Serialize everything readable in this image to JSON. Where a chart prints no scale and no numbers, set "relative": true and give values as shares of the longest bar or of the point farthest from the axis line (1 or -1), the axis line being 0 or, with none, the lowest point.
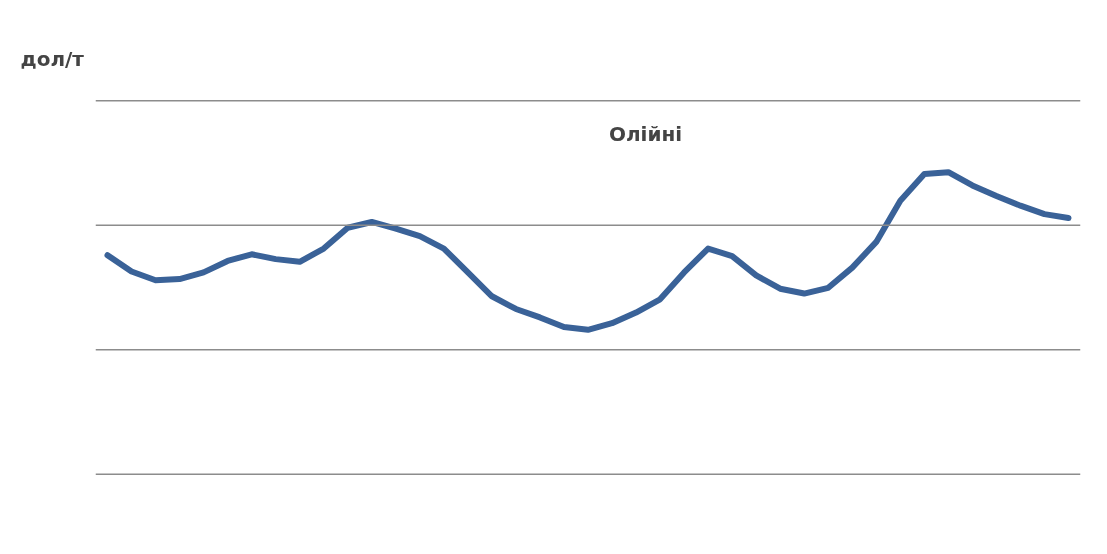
{
  "chart_data": {
    "type": "line",
    "title": "Олійні",
    "annotations": [
      "дол/т"
    ],
    "relative": true,
    "marker": "none",
    "line_style": "solid",
    "ref_lines": [
      {
        "axis": "y",
        "value": 0,
        "color": "#8c8c8c"
      },
      {
        "axis": "y",
        "value": 0.412,
        "color": "#8c8c8c"
      },
      {
        "axis": "y",
        "value": 0.824,
        "color": "#8c8c8c"
      },
      {
        "axis": "y",
        "value": 1.236,
        "color": "#8c8c8c"
      }
    ],
    "categories": [
      null,
      null,
      null,
      null,
      null,
      null,
      null,
      null,
      null,
      null,
      null,
      null,
      null,
      null,
      null,
      null,
      null,
      null,
      null,
      null,
      null,
      null,
      null,
      null,
      null,
      null,
      null,
      null,
      null,
      null,
      null,
      null,
      null,
      null,
      null,
      null,
      null,
      null,
      null,
      null,
      null
    ],
    "series": [
      {
        "color": "#3a6298",
        "values": [
          0.725,
          0.671,
          0.642,
          0.646,
          0.668,
          0.706,
          0.728,
          0.712,
          0.703,
          0.747,
          0.816,
          0.835,
          0.813,
          0.788,
          0.747,
          0.668,
          0.589,
          0.547,
          0.519,
          0.487,
          0.478,
          0.5,
          0.535,
          0.579,
          0.668,
          0.747,
          0.722,
          0.658,
          0.614,
          0.598,
          0.617,
          0.684,
          0.769,
          0.905,
          0.994,
          1,
          0.956,
          0.921,
          0.889,
          0.861,
          0.848
        ]
      }
    ]
  }
}
